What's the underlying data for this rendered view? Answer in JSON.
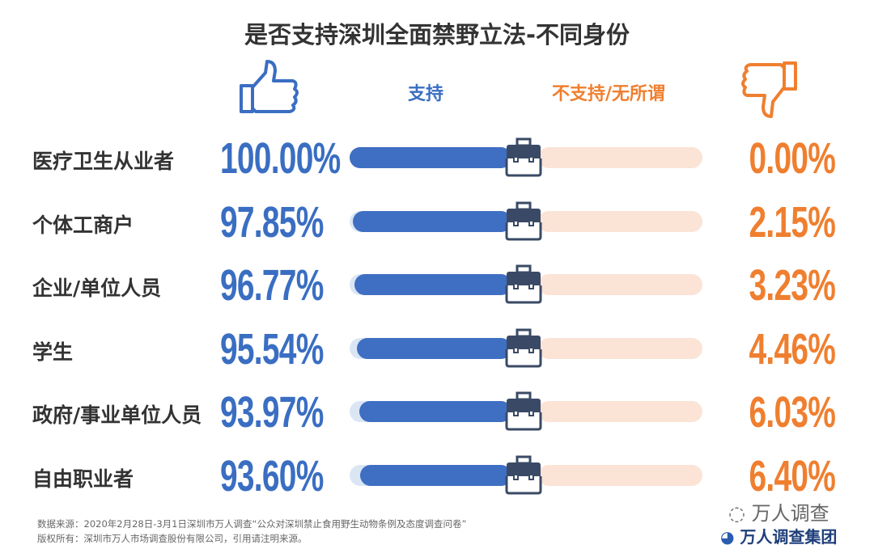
{
  "chart_data": {
    "type": "bar",
    "title": "是否支持深圳全面禁野立法-不同身份",
    "legend": {
      "support": "支持",
      "oppose": "不支持/无所谓"
    },
    "categories": [
      "医疗卫生从业者",
      "个体工商户",
      "企业/单位人员",
      "学生",
      "政府/事业单位人员",
      "自由职业者"
    ],
    "series": [
      {
        "name": "支持",
        "color": "#3f6fc3",
        "values": [
          100.0,
          97.85,
          96.77,
          95.54,
          93.97,
          93.6
        ],
        "labels": [
          "100.00%",
          "97.85%",
          "96.77%",
          "95.54%",
          "93.97%",
          "93.60%"
        ]
      },
      {
        "name": "不支持/无所谓",
        "color": "#ef7f2f",
        "values": [
          0.0,
          2.15,
          3.23,
          4.46,
          6.03,
          6.4
        ],
        "labels": [
          "0.00%",
          "2.15%",
          "3.23%",
          "4.46%",
          "6.03%",
          "6.40%"
        ]
      }
    ],
    "ylim": [
      0,
      100
    ]
  },
  "footer": {
    "source": "数据来源：2020年2月28日-3月1日深圳市万人调查“公众对深圳禁止食用野生动物条例及态度调查问卷”",
    "copyright": "版权所有：深圳市万人市场调查股份有限公司，引用请注明来源。",
    "wechat": "万人调查",
    "brand": "万人调查集团"
  }
}
